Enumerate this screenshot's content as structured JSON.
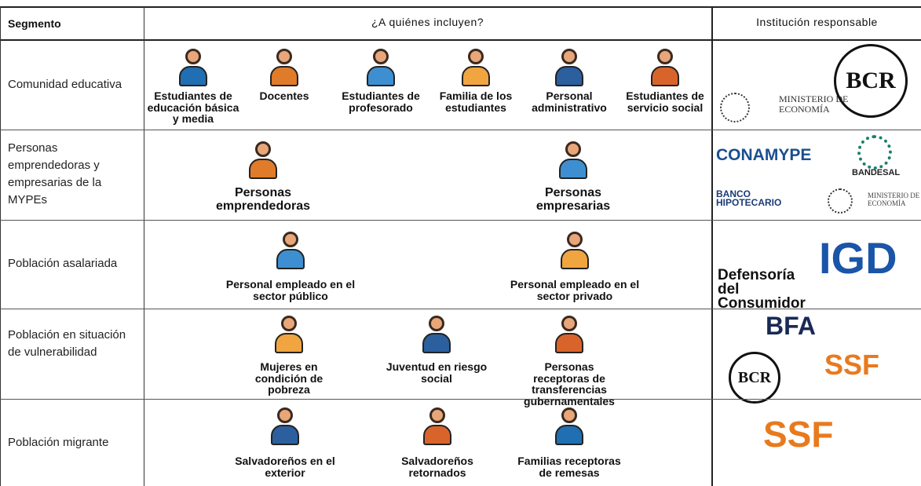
{
  "header": [
    "Segmento",
    "¿A quiénes incluyen?",
    "Institución responsable"
  ],
  "rows": [
    {
      "segment": "Comunidad educativa",
      "people": [
        "Estudiantes de educación básica y media",
        "Docentes",
        "Estudiantes de profesorado",
        "Familia de los estudiantes",
        "Personal administrativo",
        "Estudiantes de servicio social"
      ],
      "institutions": [
        "MINISTERIO DE ECONOMÍA",
        "BCR"
      ]
    },
    {
      "segment": "Personas emprendedoras y empresarias de la MYPEs",
      "people": [
        "Personas emprendedoras",
        "Personas empresarias"
      ],
      "institutions": [
        "CONAMYPE",
        "BANDESAL",
        "BANCO HIPOTECARIO",
        "MINISTERIO DE ECONOMÍA"
      ]
    },
    {
      "segment": "Población asalariada",
      "people": [
        "Personal empleado en el sector público",
        "Personal empleado en el sector privado"
      ],
      "institutions": [
        "Defensoría del Consumidor",
        "IGD"
      ]
    },
    {
      "segment": "Población en situación de vulnerabilidad",
      "people": [
        "Mujeres en condición de pobreza",
        "Juventud en riesgo social",
        "Personas receptoras de transferencias gubernamentales"
      ],
      "institutions": [
        "BFA",
        "BCR",
        "SSF"
      ]
    },
    {
      "segment": "Población migrante",
      "people": [
        "Salvadoreños en el exterior",
        "Salvadoreños retornados",
        "Familias receptoras de remesas"
      ],
      "institutions": [
        "SSF"
      ]
    }
  ]
}
